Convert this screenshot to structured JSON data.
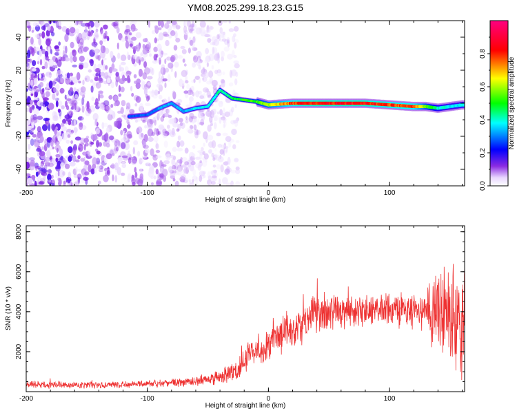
{
  "title": "YM08.2025.299.18.23.G15",
  "chart_data": [
    {
      "type": "heatmap",
      "xlabel": "Height of straight line (km)",
      "ylabel": "Frequency (Hz)",
      "xlim": [
        -200,
        162
      ],
      "ylim": [
        -50,
        50
      ],
      "x_ticks": [
        -200,
        -100,
        0,
        100
      ],
      "x_tick_labels": [
        "-200",
        "-100",
        "0",
        "100"
      ],
      "y_ticks": [
        -40,
        -20,
        0,
        20,
        40
      ],
      "y_tick_labels": [
        "-40",
        "-20",
        "0",
        "20",
        "40"
      ],
      "colorbar": {
        "label": "Normalized spectral amplitude",
        "range": [
          0,
          1
        ],
        "ticks": [
          0.0,
          0.2,
          0.4,
          0.6,
          0.8
        ],
        "tick_labels": [
          "0.0",
          "0.2",
          "0.4",
          "0.6",
          "0.8"
        ],
        "colors": [
          "#ffffff",
          "#8a2be2",
          "#0000ff",
          "#00ffff",
          "#00ff00",
          "#ffff00",
          "#ff0000",
          "#ff0080"
        ]
      },
      "ridge": {
        "description_points_x": [
          -115,
          -100,
          -90,
          -80,
          -70,
          -60,
          -50,
          -40,
          -30,
          -20,
          -10,
          0,
          20,
          40,
          60,
          80,
          100,
          120,
          130,
          140,
          150,
          160
        ],
        "frequency_hz": [
          -8,
          -7,
          -3,
          0,
          -5,
          -3,
          -2,
          8,
          3,
          2,
          1,
          -1,
          0,
          0,
          0,
          0,
          -1,
          -2,
          -2,
          -3,
          -2,
          -1
        ],
        "amplitude": [
          0.3,
          0.3,
          0.35,
          0.35,
          0.35,
          0.4,
          0.4,
          0.45,
          0.5,
          0.55,
          0.55,
          0.65,
          0.85,
          0.9,
          0.9,
          0.9,
          0.85,
          0.85,
          0.6,
          0.45,
          0.4,
          0.4
        ]
      }
    },
    {
      "type": "line",
      "xlabel": "Height of straight line (km)",
      "ylabel": "SNR (10 * v/v)",
      "xlim": [
        -200,
        162
      ],
      "ylim": [
        0,
        8300
      ],
      "x_ticks": [
        -200,
        -100,
        0,
        100
      ],
      "x_tick_labels": [
        "-200",
        "-100",
        "0",
        "100"
      ],
      "y_ticks": [
        2000,
        4000,
        6000,
        8000
      ],
      "y_tick_labels": [
        "2000",
        "4000",
        "6000",
        "8000"
      ],
      "line_color": "#ee3333",
      "envelope": {
        "x": [
          -200,
          -150,
          -100,
          -60,
          -40,
          -30,
          -20,
          -15,
          -10,
          -5,
          0,
          5,
          10,
          20,
          30,
          40,
          50,
          60,
          80,
          100,
          120,
          130,
          140,
          150,
          160
        ],
        "mean": [
          350,
          330,
          380,
          500,
          750,
          950,
          1500,
          2000,
          2200,
          1900,
          2400,
          2700,
          2800,
          3200,
          3600,
          3900,
          4000,
          3950,
          4050,
          4100,
          4050,
          4000,
          3900,
          3700,
          3500
        ],
        "spread": [
          150,
          140,
          150,
          200,
          300,
          400,
          500,
          550,
          600,
          700,
          650,
          700,
          800,
          850,
          900,
          800,
          800,
          700,
          700,
          700,
          750,
          900,
          1800,
          2200,
          2400
        ]
      }
    }
  ]
}
